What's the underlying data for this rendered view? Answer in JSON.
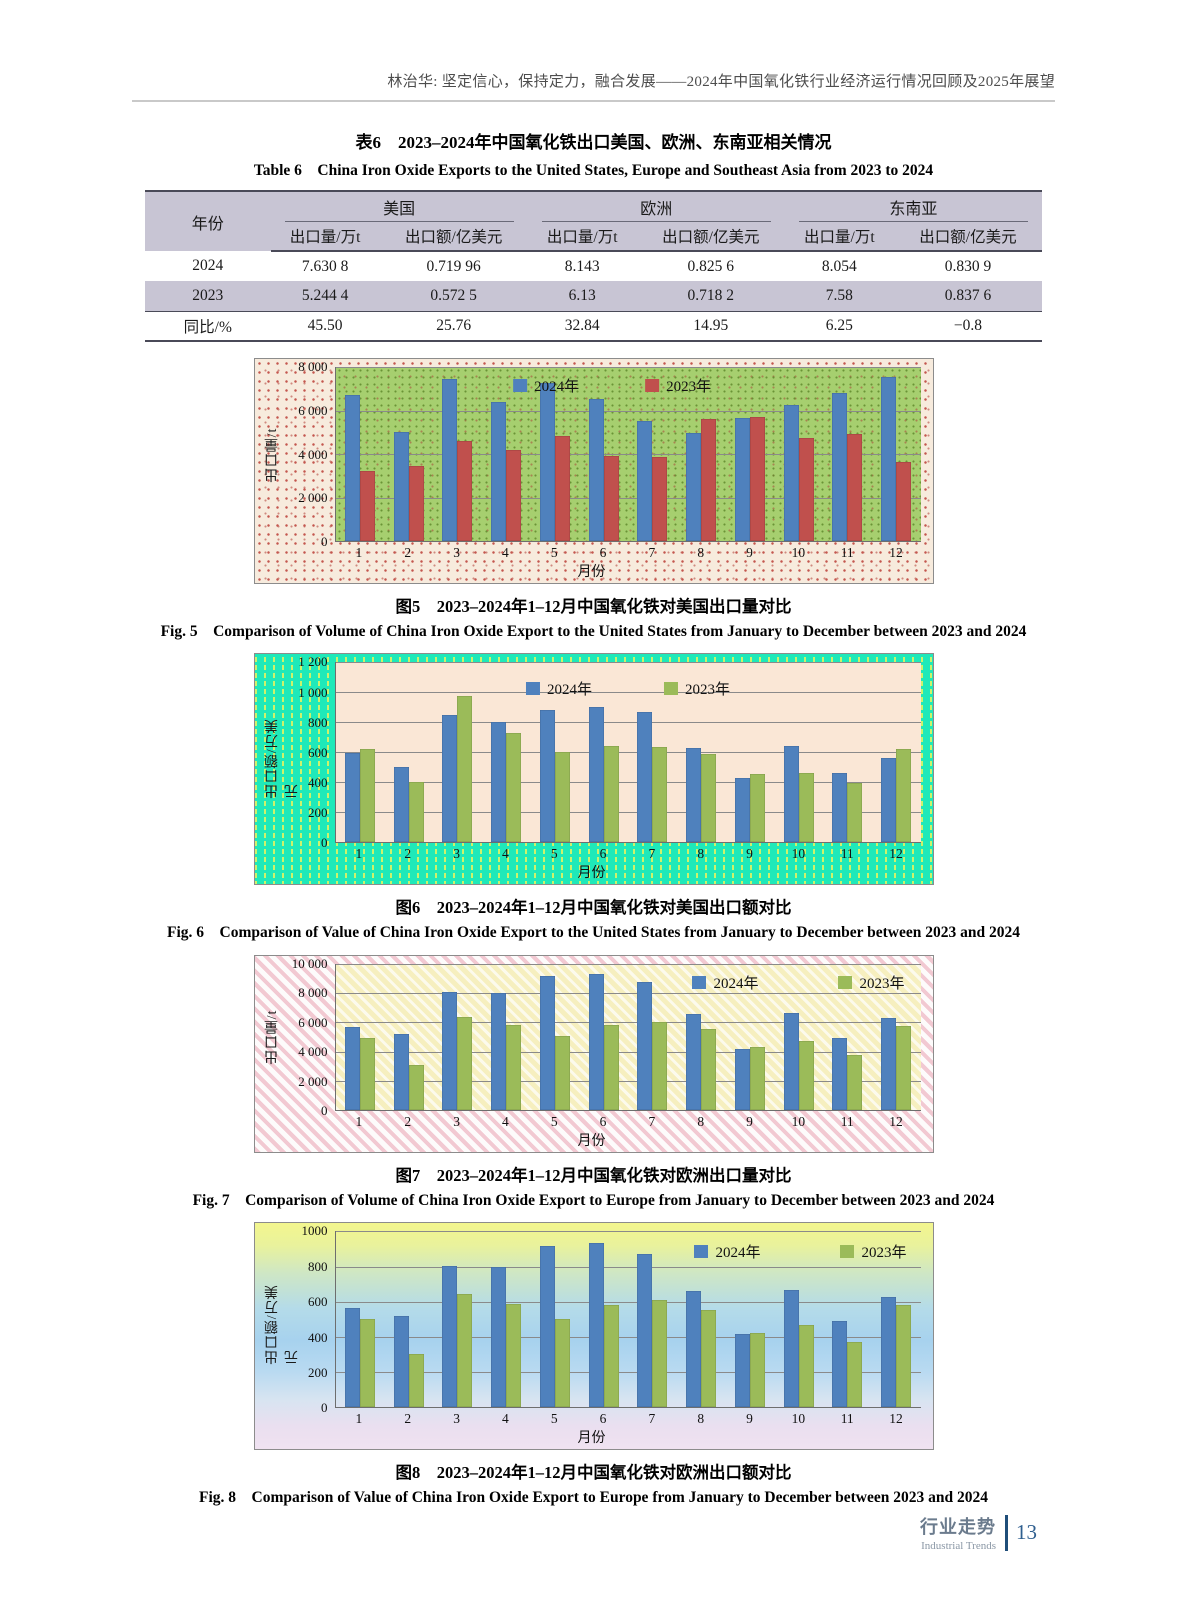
{
  "page": {
    "header": "林治华: 坚定信心，保持定力，融合发展——2024年中国氧化铁行业经济运行情况回顾及2025年展望",
    "footer": {
      "zh": "行业走势",
      "en": "Industrial Trends",
      "page_number": "13"
    }
  },
  "table": {
    "title_zh": "表6　2023–2024年中国氧化铁出口美国、欧洲、东南亚相关情况",
    "title_en": "Table 6　China Iron Oxide Exports to the United States, Europe and Southeast Asia from 2023 to 2024",
    "col_year": "年份",
    "groups": [
      "美国",
      "欧洲",
      "东南亚"
    ],
    "subheaders": [
      "出口量/万t",
      "出口额/亿美元"
    ],
    "rows": [
      {
        "label": "2024",
        "shaded": false,
        "values": [
          "7.630 8",
          "0.719 96",
          "8.143",
          "0.825 6",
          "8.054",
          "0.830 9"
        ]
      },
      {
        "label": "2023",
        "shaded": true,
        "values": [
          "5.244 4",
          "0.572 5",
          "6.13",
          "0.718 2",
          "7.58",
          "0.837 6"
        ]
      },
      {
        "label": "同比/%",
        "shaded": false,
        "values": [
          "45.50",
          "25.76",
          "32.84",
          "14.95",
          "6.25",
          "−0.8"
        ]
      }
    ]
  },
  "figures": [
    {
      "caption_zh": "图5　2023–2024年1–12月中国氧化铁对美国出口量对比",
      "caption_en": "Fig. 5　Comparison of Volume of China Iron Oxide Export to the United States from January to December between 2023 and 2024"
    },
    {
      "caption_zh": "图6　2023–2024年1–12月中国氧化铁对美国出口额对比",
      "caption_en": "Fig. 6　Comparison of Value of China Iron Oxide Export to the United States from January to December between 2023 and 2024"
    },
    {
      "caption_zh": "图7　2023–2024年1–12月中国氧化铁对欧洲出口量对比",
      "caption_en": "Fig. 7　Comparison of Volume of China Iron Oxide Export to Europe from January to December between 2023 and 2024"
    },
    {
      "caption_zh": "图8　2023–2024年1–12月中国氧化铁对欧洲出口额对比",
      "caption_en": "Fig. 8　Comparison of Value of China Iron Oxide Export to Europe from January to December between 2023 and 2024"
    }
  ],
  "chart_data": [
    {
      "type": "bar",
      "title": "图5 2023–2024年1–12月中国氧化铁对美国出口量对比",
      "categories": [
        "1",
        "2",
        "3",
        "4",
        "5",
        "6",
        "7",
        "8",
        "9",
        "10",
        "11",
        "12"
      ],
      "series": [
        {
          "name": "2024年",
          "color": "#4f81bd",
          "values": [
            6700,
            5000,
            7450,
            6400,
            7250,
            6550,
            5500,
            4950,
            5650,
            6250,
            6800,
            7550
          ]
        },
        {
          "name": "2023年",
          "color": "#c0504d",
          "values": [
            3200,
            3450,
            4600,
            4200,
            4850,
            3900,
            3850,
            5600,
            5700,
            4750,
            4900,
            3650
          ]
        }
      ],
      "xlabel": "月份",
      "ylabel": "出口量/t",
      "ylim": [
        0,
        8000
      ],
      "grid": true,
      "legend_position": "top-center",
      "yticks": [
        {
          "v": 0,
          "label": "0"
        },
        {
          "v": 2000,
          "label": "2 000"
        },
        {
          "v": 4000,
          "label": "4 000"
        },
        {
          "v": 6000,
          "label": "6 000"
        },
        {
          "v": 8000,
          "label": "8 000"
        }
      ]
    },
    {
      "type": "bar",
      "title": "图6 2023–2024年1–12月中国氧化铁对美国出口额对比",
      "categories": [
        "1",
        "2",
        "3",
        "4",
        "5",
        "6",
        "7",
        "8",
        "9",
        "10",
        "11",
        "12"
      ],
      "series": [
        {
          "name": "2024年",
          "color": "#4f81bd",
          "values": [
            595,
            505,
            850,
            800,
            880,
            905,
            870,
            630,
            430,
            645,
            460,
            560
          ]
        },
        {
          "name": "2023年",
          "color": "#9bbb59",
          "values": [
            625,
            405,
            975,
            730,
            600,
            645,
            635,
            590,
            455,
            465,
            395,
            625
          ]
        }
      ],
      "xlabel": "月份",
      "ylabel": "出口额/万美元",
      "ylim": [
        0,
        1200
      ],
      "grid": true,
      "legend_position": "top-center",
      "yticks": [
        {
          "v": 0,
          "label": "0"
        },
        {
          "v": 200,
          "label": "200"
        },
        {
          "v": 400,
          "label": "400"
        },
        {
          "v": 600,
          "label": "600"
        },
        {
          "v": 800,
          "label": "800"
        },
        {
          "v": 1000,
          "label": "1 000"
        },
        {
          "v": 1200,
          "label": "1 200"
        }
      ]
    },
    {
      "type": "bar",
      "title": "图7 2023–2024年1–12月中国氧化铁对欧洲出口量对比",
      "categories": [
        "1",
        "2",
        "3",
        "4",
        "5",
        "6",
        "7",
        "8",
        "9",
        "10",
        "11",
        "12"
      ],
      "series": [
        {
          "name": "2024年",
          "color": "#4f81bd",
          "values": [
            5700,
            5200,
            8100,
            8000,
            9200,
            9300,
            8750,
            6600,
            4200,
            6650,
            4950,
            6300
          ]
        },
        {
          "name": "2023年",
          "color": "#9bbb59",
          "values": [
            4950,
            3100,
            6400,
            5850,
            5050,
            5800,
            6050,
            5550,
            4300,
            4700,
            3750,
            5750
          ]
        }
      ],
      "xlabel": "月份",
      "ylabel": "出口量/t",
      "ylim": [
        0,
        10000
      ],
      "grid": true,
      "legend_position": "top-right",
      "yticks": [
        {
          "v": 0,
          "label": "0"
        },
        {
          "v": 2000,
          "label": "2 000"
        },
        {
          "v": 4000,
          "label": "4 000"
        },
        {
          "v": 6000,
          "label": "6 000"
        },
        {
          "v": 8000,
          "label": "8 000"
        },
        {
          "v": 10000,
          "label": "10 000"
        }
      ]
    },
    {
      "type": "bar",
      "title": "图8 2023–2024年1–12月中国氧化铁对欧洲出口额对比",
      "categories": [
        "1",
        "2",
        "3",
        "4",
        "5",
        "6",
        "7",
        "8",
        "9",
        "10",
        "11",
        "12"
      ],
      "series": [
        {
          "name": "2024年",
          "color": "#4f81bd",
          "values": [
            565,
            520,
            805,
            800,
            920,
            935,
            870,
            660,
            415,
            665,
            490,
            630
          ]
        },
        {
          "name": "2023年",
          "color": "#9bbb59",
          "values": [
            500,
            305,
            645,
            590,
            505,
            580,
            610,
            555,
            425,
            470,
            370,
            580
          ]
        }
      ],
      "xlabel": "月份",
      "ylabel": "出口额/万美元",
      "ylim": [
        0,
        1000
      ],
      "grid": true,
      "legend_position": "top-right",
      "yticks": [
        {
          "v": 0,
          "label": "0"
        },
        {
          "v": 200,
          "label": "200"
        },
        {
          "v": 400,
          "label": "400"
        },
        {
          "v": 600,
          "label": "600"
        },
        {
          "v": 800,
          "label": "800"
        },
        {
          "v": 1000,
          "label": "1000"
        }
      ]
    }
  ]
}
